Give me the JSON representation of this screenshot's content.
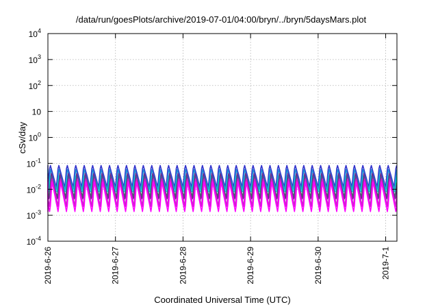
{
  "chart_data": {
    "type": "line",
    "title": "/data/run/goesPlots/archive/2019-07-01/04:00/bryn/../bryn/5daysMars.plot",
    "xlabel": "Coordinated Universal Time (UTC)",
    "ylabel": "cSv/day",
    "yscale": "log",
    "ylim": [
      0.0001,
      10000
    ],
    "y_ticks": [
      {
        "value": 0.0001,
        "base": "10",
        "exp": "-4"
      },
      {
        "value": 0.001,
        "base": "10",
        "exp": "-3"
      },
      {
        "value": 0.01,
        "base": "10",
        "exp": "-2"
      },
      {
        "value": 0.1,
        "base": "10",
        "exp": "-1"
      },
      {
        "value": 1,
        "base": "10",
        "exp": "0"
      },
      {
        "value": 10,
        "base": "10",
        "exp": ""
      },
      {
        "value": 100,
        "base": "10",
        "exp": "2"
      },
      {
        "value": 1000,
        "base": "10",
        "exp": "3"
      },
      {
        "value": 10000,
        "base": "10",
        "exp": "4"
      }
    ],
    "xlim": [
      "2019-06-26 00:00",
      "2019-07-01 04:00"
    ],
    "x_ticks": [
      "2019-6-26",
      "2019-6-27",
      "2019-6-28",
      "2019-6-29",
      "2019-6-30",
      "2019-7-1"
    ],
    "grid": true,
    "legend": "none",
    "pattern": {
      "cycle_hours": 3,
      "rise_hours": 0.75
    },
    "series": [
      {
        "color": "#3333cc",
        "peak": 0.095,
        "trough": 0.012
      },
      {
        "color": "#1f8fd6",
        "peak": 0.06,
        "trough": 0.009
      },
      {
        "color": "#00d2d2",
        "peak": 0.04,
        "trough": 0.007
      },
      {
        "color": "#2e8b57",
        "peak": 0.03,
        "trough": 0.005
      },
      {
        "color": "#6b2d8f",
        "peak": 0.045,
        "trough": 0.0035
      },
      {
        "color": "#cc22cc",
        "peak": 0.03,
        "trough": 0.0022
      },
      {
        "color": "#ff00ff",
        "peak": 0.02,
        "trough": 0.0012
      }
    ]
  }
}
